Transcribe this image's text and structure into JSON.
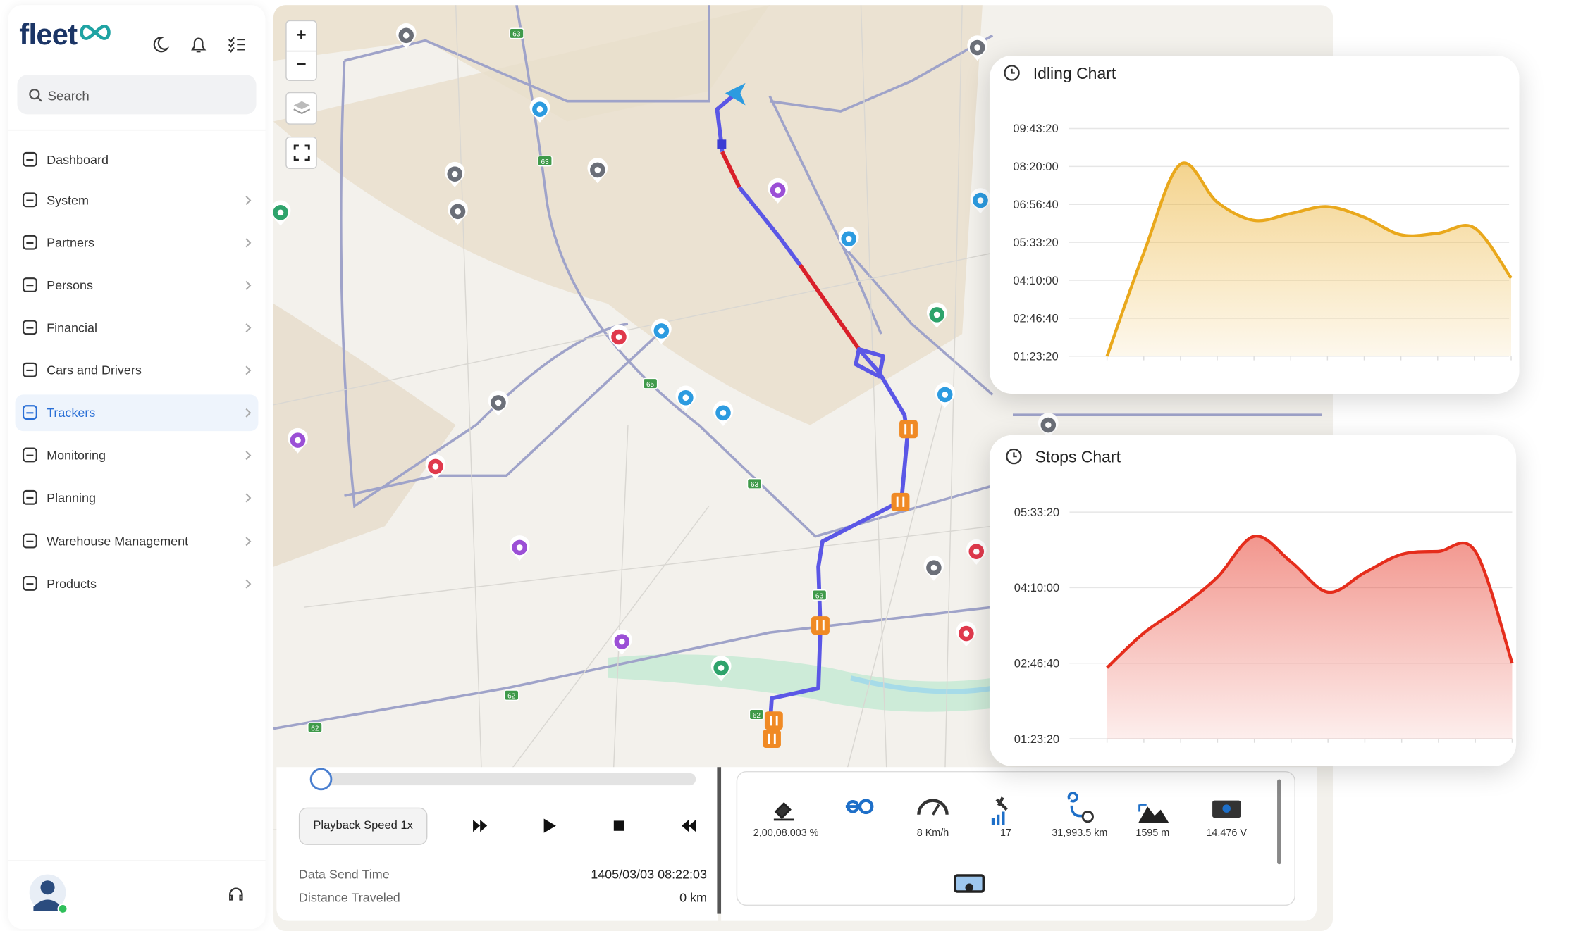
{
  "sidebar": {
    "logo": "fleet",
    "search": "Search",
    "menu": [
      "Dashboard",
      "System",
      "Partners",
      "Persons",
      "Financial",
      "Cars and Drivers",
      "Trackers",
      "Monitoring",
      "Planning",
      "Warehouse Management",
      "Products"
    ],
    "active": 6
  },
  "map": {
    "zoom_in": "+",
    "zoom_out": "−",
    "road_labels": [
      "63",
      "63",
      "65",
      "63",
      "63",
      "62",
      "62",
      "62"
    ]
  },
  "playback": {
    "speed": "Playback Speed 1x",
    "fields": [
      {
        "label": "Data Send Time",
        "value": "1405/03/03 08:22:03"
      },
      {
        "label": "Distance Traveled",
        "value": "0 km"
      }
    ]
  },
  "stats": [
    "2,00,08.003 %",
    "8 Km/h",
    "17",
    "31,993.5 km",
    "1595 m",
    "14.476 V"
  ],
  "chart_data": [
    {
      "type": "area",
      "title": "Idling Chart",
      "categories": [
        null,
        null,
        null,
        null,
        null,
        null,
        null,
        null,
        null,
        null,
        null,
        null
      ],
      "values": [
        5000,
        18600,
        30300,
        25300,
        22900,
        23800,
        24700,
        23300,
        21000,
        21200,
        21900,
        15300
      ],
      "color": "#e9a81c",
      "ylim": [
        5000,
        35000
      ],
      "yticks": [
        {
          "value": 5000,
          "label": "01:23:20"
        },
        {
          "value": 10000,
          "label": "02:46:40"
        },
        {
          "value": 15000,
          "label": "04:10:00"
        },
        {
          "value": 20000,
          "label": "05:33:20"
        },
        {
          "value": 25000,
          "label": "06:56:40"
        },
        {
          "value": 30000,
          "label": "08:20:00"
        },
        {
          "value": 35000,
          "label": "09:43:20"
        }
      ],
      "grid": true
    },
    {
      "type": "area",
      "title": "Stops Chart",
      "categories": [
        null,
        null,
        null,
        null,
        null,
        null,
        null,
        null,
        null,
        null,
        null,
        null
      ],
      "values": [
        9700,
        12000,
        13700,
        15700,
        18400,
        16700,
        14700,
        16000,
        17200,
        17400,
        17400,
        10000
      ],
      "color": "#e52d1c",
      "ylim": [
        5000,
        20000
      ],
      "yticks": [
        {
          "value": 5000,
          "label": "01:23:20"
        },
        {
          "value": 10000,
          "label": "02:46:40"
        },
        {
          "value": 15000,
          "label": "04:10:00"
        },
        {
          "value": 20000,
          "label": "05:33:20"
        }
      ],
      "grid": true
    }
  ]
}
